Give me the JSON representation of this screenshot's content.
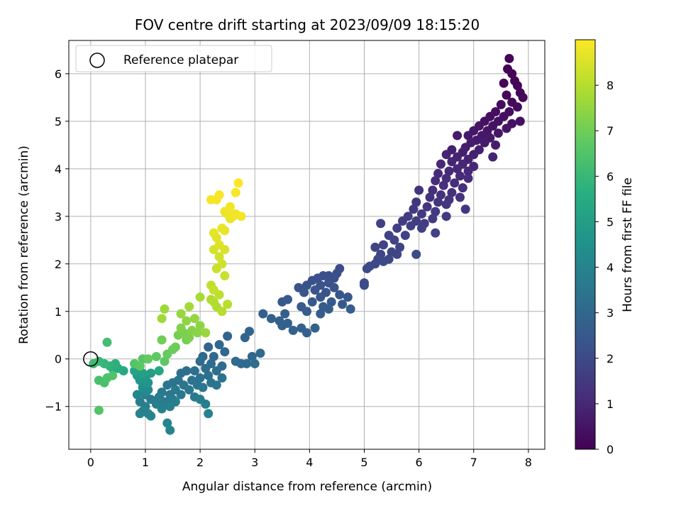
{
  "chart_data": {
    "type": "scatter",
    "title": "FOV centre drift starting at 2023/09/09 18:15:20",
    "xlabel": "Angular distance from reference (arcmin)",
    "ylabel": "Rotation from reference (arcmin)",
    "xlim": [
      -0.4,
      8.3
    ],
    "ylim": [
      -1.9,
      6.7
    ],
    "x_ticks": [
      0,
      1,
      2,
      3,
      4,
      5,
      6,
      7,
      8
    ],
    "y_ticks": [
      -1,
      0,
      1,
      2,
      3,
      4,
      5,
      6
    ],
    "x_tick_labels": [
      "0",
      "1",
      "2",
      "3",
      "4",
      "5",
      "6",
      "7",
      "8"
    ],
    "y_tick_labels": [
      "−1",
      "0",
      "1",
      "2",
      "3",
      "4",
      "5",
      "6"
    ],
    "grid": true,
    "colormap": "viridis",
    "colorbar": {
      "label": "Hours from first FF file",
      "range": [
        0,
        9
      ],
      "ticks": [
        0,
        1,
        2,
        3,
        4,
        5,
        6,
        7,
        8
      ],
      "tick_labels": [
        "0",
        "1",
        "2",
        "3",
        "4",
        "5",
        "6",
        "7",
        "8"
      ]
    },
    "legend": {
      "placement": "top-left",
      "entries": [
        {
          "label": "Reference platepar",
          "marker": "open-circle"
        }
      ]
    },
    "reference_point": {
      "x": 0,
      "y": 0
    },
    "points": [
      [
        7.65,
        6.32,
        0.05
      ],
      [
        7.62,
        6.1,
        0.08
      ],
      [
        7.7,
        6.0,
        0.1
      ],
      [
        7.75,
        5.85,
        0.12
      ],
      [
        7.8,
        5.75,
        0.14
      ],
      [
        7.55,
        5.8,
        0.16
      ],
      [
        7.85,
        5.6,
        0.18
      ],
      [
        7.6,
        5.55,
        0.2
      ],
      [
        7.9,
        5.5,
        0.22
      ],
      [
        7.7,
        5.4,
        0.24
      ],
      [
        7.5,
        5.35,
        0.26
      ],
      [
        7.8,
        5.3,
        0.28
      ],
      [
        7.65,
        5.2,
        0.3
      ],
      [
        7.4,
        5.2,
        0.32
      ],
      [
        7.55,
        5.1,
        0.34
      ],
      [
        7.3,
        5.1,
        0.36
      ],
      [
        7.85,
        5.0,
        0.38
      ],
      [
        7.45,
        5.0,
        0.4
      ],
      [
        7.2,
        5.0,
        0.42
      ],
      [
        7.7,
        4.95,
        0.44
      ],
      [
        7.35,
        4.9,
        0.46
      ],
      [
        7.1,
        4.9,
        0.48
      ],
      [
        7.6,
        4.85,
        0.5
      ],
      [
        7.25,
        4.8,
        0.52
      ],
      [
        7.0,
        4.8,
        0.54
      ],
      [
        7.45,
        4.75,
        0.56
      ],
      [
        7.15,
        4.7,
        0.58
      ],
      [
        6.9,
        4.7,
        0.6
      ],
      [
        7.3,
        4.65,
        0.62
      ],
      [
        7.05,
        4.6,
        0.64
      ],
      [
        6.7,
        4.7,
        0.66
      ],
      [
        7.2,
        4.55,
        0.68
      ],
      [
        6.95,
        4.55,
        0.7
      ],
      [
        7.4,
        4.5,
        0.72
      ],
      [
        6.85,
        4.45,
        0.74
      ],
      [
        7.1,
        4.4,
        0.76
      ],
      [
        6.6,
        4.4,
        0.78
      ],
      [
        6.8,
        4.35,
        0.8
      ],
      [
        7.0,
        4.3,
        0.82
      ],
      [
        6.5,
        4.3,
        0.84
      ],
      [
        6.7,
        4.25,
        0.86
      ],
      [
        6.9,
        4.2,
        0.88
      ],
      [
        7.35,
        4.25,
        0.9
      ],
      [
        6.6,
        4.15,
        0.92
      ],
      [
        6.8,
        4.1,
        0.94
      ],
      [
        7.0,
        4.05,
        0.96
      ],
      [
        6.4,
        4.1,
        0.98
      ],
      [
        6.7,
        4.0,
        1.0
      ],
      [
        6.9,
        3.95,
        1.02
      ],
      [
        6.55,
        3.95,
        1.04
      ],
      [
        6.35,
        3.9,
        1.06
      ],
      [
        6.75,
        3.85,
        1.08
      ],
      [
        6.5,
        3.8,
        1.1
      ],
      [
        6.9,
        3.8,
        1.12
      ],
      [
        6.3,
        3.75,
        1.14
      ],
      [
        6.65,
        3.7,
        1.16
      ],
      [
        6.45,
        3.65,
        1.18
      ],
      [
        6.8,
        3.6,
        1.2
      ],
      [
        6.25,
        3.55,
        1.22
      ],
      [
        6.6,
        3.5,
        1.24
      ],
      [
        6.4,
        3.45,
        1.26
      ],
      [
        6.2,
        3.4,
        1.28
      ],
      [
        6.75,
        3.4,
        1.3
      ],
      [
        6.55,
        3.35,
        1.32
      ],
      [
        6.0,
        3.55,
        1.34
      ],
      [
        6.35,
        3.3,
        1.36
      ],
      [
        5.95,
        3.3,
        1.38
      ],
      [
        6.5,
        3.25,
        1.4
      ],
      [
        6.15,
        3.2,
        1.42
      ],
      [
        6.85,
        3.15,
        1.44
      ],
      [
        5.9,
        3.15,
        1.46
      ],
      [
        6.3,
        3.1,
        1.48
      ],
      [
        6.05,
        3.05,
        1.5
      ],
      [
        6.5,
        3.0,
        1.52
      ],
      [
        5.8,
        3.0,
        1.54
      ],
      [
        6.25,
        2.95,
        1.56
      ],
      [
        5.95,
        2.9,
        1.58
      ],
      [
        5.7,
        2.9,
        1.6
      ],
      [
        6.1,
        2.85,
        1.62
      ],
      [
        5.85,
        2.8,
        1.64
      ],
      [
        6.05,
        2.75,
        1.66
      ],
      [
        5.6,
        2.75,
        1.68
      ],
      [
        5.3,
        2.85,
        1.7
      ],
      [
        6.3,
        2.65,
        1.72
      ],
      [
        5.75,
        2.6,
        1.74
      ],
      [
        5.45,
        2.6,
        1.76
      ],
      [
        5.55,
        2.5,
        1.78
      ],
      [
        5.35,
        2.4,
        1.8
      ],
      [
        5.65,
        2.35,
        1.82
      ],
      [
        5.2,
        2.35,
        1.84
      ],
      [
        5.5,
        2.25,
        1.86
      ],
      [
        5.3,
        2.2,
        1.88
      ],
      [
        5.6,
        2.2,
        1.9
      ],
      [
        5.25,
        2.1,
        1.92
      ],
      [
        5.45,
        2.1,
        1.94
      ],
      [
        5.2,
        2.0,
        1.96
      ],
      [
        5.35,
        2.05,
        1.98
      ],
      [
        5.1,
        1.95,
        2.0
      ],
      [
        5.05,
        1.9,
        2.02
      ],
      [
        5.95,
        2.2,
        2.04
      ],
      [
        5.0,
        1.6,
        2.06
      ],
      [
        5.0,
        1.55,
        2.08
      ],
      [
        4.55,
        1.9,
        2.1
      ],
      [
        4.5,
        1.8,
        2.12
      ],
      [
        4.35,
        1.75,
        2.14
      ],
      [
        4.25,
        1.75,
        2.16
      ],
      [
        4.45,
        1.7,
        2.18
      ],
      [
        4.15,
        1.7,
        2.2
      ],
      [
        4.05,
        1.65,
        2.22
      ],
      [
        4.35,
        1.6,
        2.24
      ],
      [
        4.2,
        1.55,
        2.26
      ],
      [
        3.95,
        1.55,
        2.28
      ],
      [
        4.45,
        1.5,
        2.3
      ],
      [
        3.8,
        1.5,
        2.32
      ],
      [
        4.1,
        1.45,
        2.34
      ],
      [
        4.3,
        1.4,
        2.36
      ],
      [
        3.9,
        1.4,
        2.38
      ],
      [
        4.55,
        1.35,
        2.4
      ],
      [
        4.2,
        1.3,
        2.42
      ],
      [
        4.7,
        1.3,
        2.44
      ],
      [
        3.5,
        1.2,
        2.46
      ],
      [
        3.6,
        1.25,
        2.48
      ],
      [
        4.4,
        1.2,
        2.5
      ],
      [
        4.05,
        1.2,
        2.52
      ],
      [
        4.6,
        1.15,
        2.54
      ],
      [
        3.85,
        1.1,
        2.56
      ],
      [
        4.25,
        1.1,
        2.58
      ],
      [
        4.35,
        1.05,
        2.6
      ],
      [
        4.75,
        1.05,
        2.62
      ],
      [
        3.95,
        1.0,
        2.64
      ],
      [
        4.2,
        0.95,
        2.66
      ],
      [
        3.55,
        0.95,
        2.68
      ],
      [
        3.15,
        0.95,
        2.7
      ],
      [
        3.3,
        0.85,
        2.72
      ],
      [
        3.45,
        0.8,
        2.74
      ],
      [
        3.6,
        0.75,
        2.76
      ],
      [
        3.5,
        0.7,
        2.78
      ],
      [
        3.85,
        0.65,
        2.8
      ],
      [
        4.1,
        0.65,
        2.82
      ],
      [
        3.7,
        0.6,
        2.84
      ],
      [
        3.95,
        0.55,
        2.86
      ],
      [
        2.9,
        0.58,
        2.88
      ],
      [
        2.82,
        0.45,
        2.9
      ],
      [
        2.5,
        0.48,
        2.92
      ],
      [
        2.35,
        0.3,
        2.94
      ],
      [
        2.15,
        0.25,
        2.96
      ],
      [
        2.45,
        0.15,
        2.98
      ],
      [
        2.95,
        0.05,
        3.0
      ],
      [
        3.1,
        0.12,
        3.02
      ],
      [
        2.05,
        0.05,
        3.04
      ],
      [
        2.25,
        0.05,
        3.06
      ],
      [
        2.65,
        -0.05,
        3.08
      ],
      [
        2.0,
        -0.05,
        3.1
      ],
      [
        2.85,
        -0.1,
        3.12
      ],
      [
        2.75,
        -0.1,
        3.14
      ],
      [
        2.2,
        -0.1,
        3.16
      ],
      [
        2.4,
        -0.15,
        3.18
      ],
      [
        3.0,
        -0.1,
        3.2
      ],
      [
        2.1,
        -0.2,
        3.22
      ],
      [
        1.9,
        -0.25,
        3.24
      ],
      [
        2.3,
        -0.25,
        3.26
      ],
      [
        1.75,
        -0.25,
        3.28
      ],
      [
        1.65,
        -0.3,
        3.3
      ],
      [
        2.15,
        -0.35,
        3.32
      ],
      [
        2.0,
        -0.4,
        3.34
      ],
      [
        2.4,
        -0.4,
        3.36
      ],
      [
        1.85,
        -0.45,
        3.38
      ],
      [
        1.6,
        -0.45,
        3.4
      ],
      [
        2.2,
        -0.5,
        3.42
      ],
      [
        1.5,
        -0.5,
        3.44
      ],
      [
        1.95,
        -0.55,
        3.46
      ],
      [
        1.7,
        -0.55,
        3.48
      ],
      [
        2.3,
        -0.55,
        3.5
      ],
      [
        1.4,
        -0.55,
        3.52
      ],
      [
        2.05,
        -0.6,
        3.54
      ],
      [
        1.55,
        -0.65,
        3.56
      ],
      [
        1.8,
        -0.65,
        3.58
      ],
      [
        1.3,
        -0.7,
        3.6
      ],
      [
        1.45,
        -0.75,
        3.62
      ],
      [
        1.65,
        -0.75,
        3.64
      ],
      [
        1.0,
        -0.75,
        3.66
      ],
      [
        1.9,
        -0.8,
        3.68
      ],
      [
        1.25,
        -0.8,
        3.7
      ],
      [
        1.5,
        -0.85,
        3.72
      ],
      [
        1.1,
        -0.85,
        3.74
      ],
      [
        2.0,
        -0.85,
        3.76
      ],
      [
        1.35,
        -0.9,
        3.78
      ],
      [
        1.55,
        -0.9,
        3.8
      ],
      [
        0.9,
        -0.9,
        3.82
      ],
      [
        2.1,
        -0.95,
        3.84
      ],
      [
        1.2,
        -0.95,
        3.86
      ],
      [
        1.45,
        -1.0,
        3.88
      ],
      [
        1.0,
        -1.0,
        3.9
      ],
      [
        1.3,
        -1.05,
        3.92
      ],
      [
        0.95,
        -1.1,
        3.94
      ],
      [
        2.15,
        -1.15,
        3.96
      ],
      [
        1.05,
        -1.15,
        3.98
      ],
      [
        0.9,
        -1.15,
        4.0
      ],
      [
        1.4,
        -1.35,
        4.02
      ],
      [
        1.45,
        -1.5,
        4.04
      ],
      [
        1.1,
        -1.2,
        4.06
      ],
      [
        0.85,
        -0.75,
        4.08
      ],
      [
        1.0,
        -0.7,
        4.2
      ],
      [
        1.05,
        -0.65,
        4.3
      ],
      [
        0.95,
        -0.6,
        4.4
      ],
      [
        1.0,
        -0.55,
        4.5
      ],
      [
        1.05,
        -0.5,
        4.6
      ],
      [
        0.9,
        -0.45,
        4.7
      ],
      [
        1.0,
        -0.4,
        4.8
      ],
      [
        0.85,
        -0.35,
        4.9
      ],
      [
        1.1,
        -0.3,
        5.0
      ],
      [
        0.95,
        -0.3,
        5.1
      ],
      [
        0.8,
        -0.25,
        5.2
      ],
      [
        1.25,
        -0.25,
        5.3
      ],
      [
        0.6,
        -0.25,
        5.4
      ],
      [
        0.5,
        -0.2,
        5.5
      ],
      [
        0.4,
        -0.2,
        5.6
      ],
      [
        0.45,
        -0.1,
        5.7
      ],
      [
        0.35,
        -0.15,
        5.8
      ],
      [
        0.25,
        -0.1,
        5.9
      ],
      [
        0.15,
        -0.05,
        6.0
      ],
      [
        0.05,
        -0.1,
        6.1
      ],
      [
        0.3,
        0.35,
        6.2
      ],
      [
        0.15,
        -0.45,
        6.3
      ],
      [
        0.25,
        -0.5,
        6.35
      ],
      [
        0.3,
        -0.4,
        6.4
      ],
      [
        0.4,
        -0.35,
        6.45
      ],
      [
        0.15,
        -1.08,
        6.5
      ],
      [
        0.8,
        -0.1,
        6.55
      ],
      [
        0.95,
        0.0,
        6.6
      ],
      [
        0.9,
        -0.15,
        6.65
      ],
      [
        1.35,
        -0.05,
        6.7
      ],
      [
        1.2,
        0.05,
        6.75
      ],
      [
        1.05,
        0.0,
        6.8
      ],
      [
        1.4,
        0.1,
        6.85
      ],
      [
        1.5,
        0.2,
        6.9
      ],
      [
        1.55,
        0.25,
        6.95
      ],
      [
        1.3,
        0.4,
        7.0
      ],
      [
        1.75,
        0.4,
        7.05
      ],
      [
        1.6,
        0.5,
        7.1
      ],
      [
        1.7,
        0.55,
        7.15
      ],
      [
        1.8,
        0.45,
        7.2
      ],
      [
        1.65,
        0.65,
        7.25
      ],
      [
        1.85,
        0.6,
        7.3
      ],
      [
        1.95,
        0.55,
        7.35
      ],
      [
        2.0,
        0.7,
        7.4
      ],
      [
        1.75,
        0.8,
        7.45
      ],
      [
        1.9,
        0.85,
        7.5
      ],
      [
        1.65,
        0.95,
        7.55
      ],
      [
        2.1,
        0.55,
        7.6
      ],
      [
        1.35,
        1.05,
        7.65
      ],
      [
        1.3,
        0.85,
        7.7
      ],
      [
        1.8,
        1.1,
        7.75
      ],
      [
        2.0,
        1.3,
        7.8
      ],
      [
        2.2,
        1.25,
        7.85
      ],
      [
        2.3,
        1.1,
        7.9
      ],
      [
        2.25,
        1.2,
        7.95
      ],
      [
        2.4,
        1.0,
        8.0
      ],
      [
        2.5,
        1.15,
        8.05
      ],
      [
        2.35,
        1.35,
        8.1
      ],
      [
        2.2,
        1.55,
        8.15
      ],
      [
        2.25,
        1.45,
        8.2
      ],
      [
        2.45,
        1.75,
        8.25
      ],
      [
        2.3,
        1.9,
        8.3
      ],
      [
        2.4,
        2.0,
        8.35
      ],
      [
        2.35,
        2.15,
        8.4
      ],
      [
        2.25,
        2.3,
        8.45
      ],
      [
        2.45,
        2.3,
        8.5
      ],
      [
        2.35,
        2.4,
        8.55
      ],
      [
        2.3,
        2.55,
        8.6
      ],
      [
        2.25,
        2.65,
        8.65
      ],
      [
        2.4,
        2.75,
        8.7
      ],
      [
        2.45,
        2.7,
        8.72
      ],
      [
        2.55,
        2.95,
        8.74
      ],
      [
        2.5,
        3.05,
        8.76
      ],
      [
        2.6,
        3.0,
        8.78
      ],
      [
        2.45,
        3.1,
        8.8
      ],
      [
        2.65,
        3.05,
        8.82
      ],
      [
        2.55,
        3.2,
        8.84
      ],
      [
        2.75,
        3.0,
        8.86
      ],
      [
        2.3,
        3.35,
        8.88
      ],
      [
        2.2,
        3.35,
        8.9
      ],
      [
        2.35,
        3.45,
        8.92
      ],
      [
        2.65,
        3.5,
        8.94
      ],
      [
        2.7,
        3.7,
        8.96
      ]
    ]
  }
}
